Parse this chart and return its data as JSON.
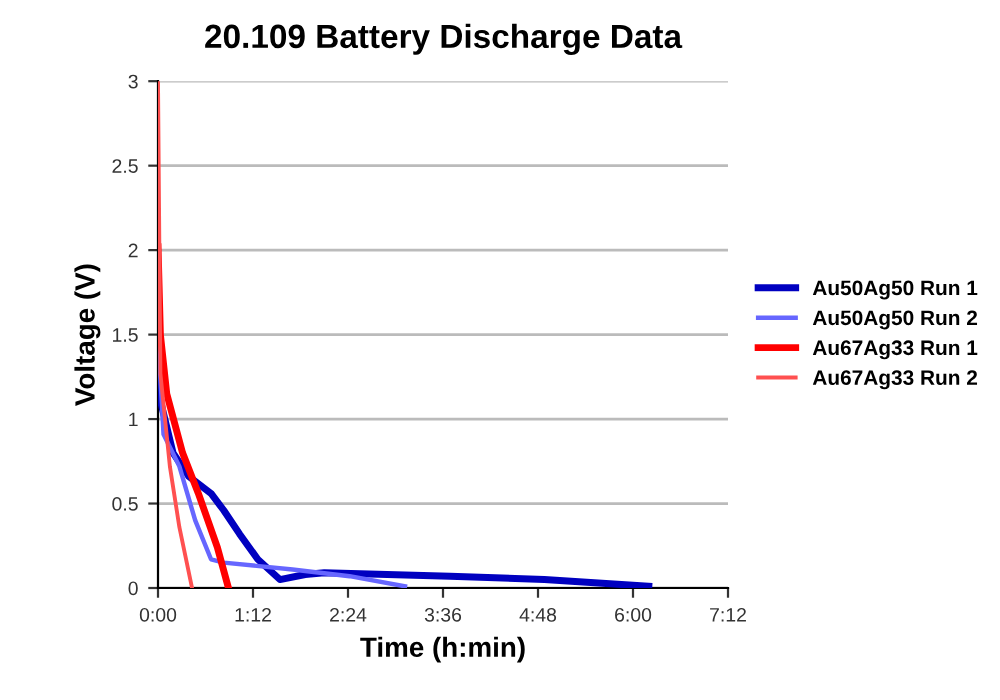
{
  "chart_data": {
    "type": "line",
    "title": "20.109 Battery Discharge Data",
    "xlabel": "Time (h:min)",
    "ylabel": "Voltage (V)",
    "xlim": [
      0,
      7.2
    ],
    "xticks": [
      {
        "value": 0,
        "label": "0:00"
      },
      {
        "value": 1.2,
        "label": "1:12"
      },
      {
        "value": 2.4,
        "label": "2:24"
      },
      {
        "value": 3.6,
        "label": "3:36"
      },
      {
        "value": 4.8,
        "label": "4:48"
      },
      {
        "value": 6.0,
        "label": "6:00"
      },
      {
        "value": 7.2,
        "label": "7:12"
      }
    ],
    "ylim": [
      0,
      3
    ],
    "yticks": [
      0,
      0.5,
      1,
      1.5,
      2,
      2.5,
      3
    ],
    "grid": "y",
    "legend": "right",
    "marker": "none",
    "line_style": "solid",
    "series": [
      {
        "name": "Au50Ag50 Run 1",
        "color": "#0000c0",
        "x": [
          0,
          0.03,
          0.19,
          0.39,
          0.67,
          0.83,
          1.03,
          1.26,
          1.54,
          1.86,
          2.1,
          3.69,
          4.88,
          6.2
        ],
        "values": [
          1.45,
          1.11,
          0.8,
          0.66,
          0.56,
          0.46,
          0.32,
          0.17,
          0.05,
          0.08,
          0.09,
          0.07,
          0.05,
          0.01
        ]
      },
      {
        "name": "Au50Ag50 Run 2",
        "color": "#6666ff",
        "x": [
          0,
          0.07,
          0.27,
          0.47,
          0.67,
          0.83,
          1.7,
          2.42,
          3.12
        ],
        "values": [
          1.5,
          0.91,
          0.72,
          0.4,
          0.17,
          0.15,
          0.11,
          0.07,
          0.01
        ]
      },
      {
        "name": "Au67Ag33 Run 1",
        "color": "#ff0000",
        "x": [
          0,
          0.03,
          0.11,
          0.31,
          0.51,
          0.75,
          0.89
        ],
        "values": [
          2.02,
          1.5,
          1.15,
          0.8,
          0.56,
          0.24,
          0
        ]
      },
      {
        "name": "Au67Ag33 Run 2",
        "color": "#ff5050",
        "x": [
          0,
          0.03,
          0.15,
          0.27,
          0.43
        ],
        "values": [
          3,
          1.27,
          0.72,
          0.36,
          0
        ]
      }
    ]
  }
}
